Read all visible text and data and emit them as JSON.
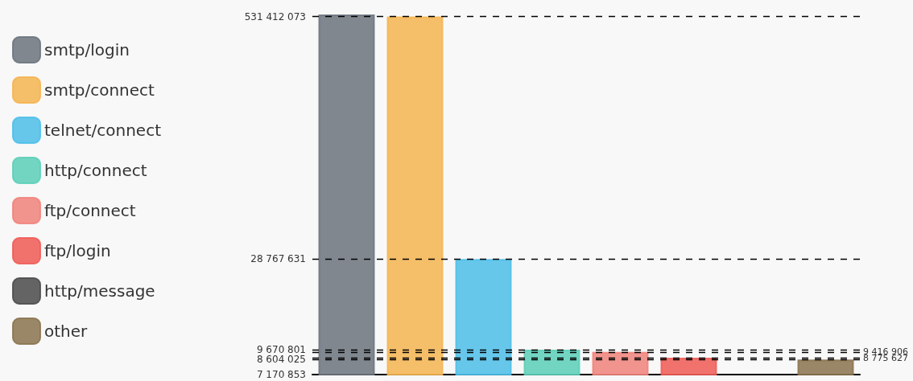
{
  "chart_data": {
    "type": "bar",
    "categories": [
      null,
      null,
      null,
      null,
      null,
      null,
      null,
      null
    ],
    "series": [
      {
        "name": "smtp/login",
        "color": "#6b737c",
        "values": [
          545000000,
          null,
          null,
          null,
          null,
          null,
          null,
          null
        ]
      },
      {
        "name": "smtp/connect",
        "color": "#f5b450",
        "values": [
          null,
          531412073,
          null,
          null,
          null,
          null,
          null,
          null
        ]
      },
      {
        "name": "telnet/connect",
        "color": "#4cbee9",
        "values": [
          null,
          null,
          28767631,
          null,
          null,
          null,
          null,
          null
        ]
      },
      {
        "name": "http/connect",
        "color": "#5bcfb8",
        "values": [
          null,
          null,
          null,
          9670801,
          null,
          null,
          null,
          null
        ]
      },
      {
        "name": "ftp/connect",
        "color": "#f0837a",
        "values": [
          null,
          null,
          null,
          null,
          9416906,
          null,
          null,
          null
        ]
      },
      {
        "name": "ftp/login",
        "color": "#f05a55",
        "values": [
          null,
          null,
          null,
          null,
          null,
          8775627,
          null,
          null
        ]
      },
      {
        "name": "http/message",
        "color": "#4a4a4a",
        "values": [
          null,
          null,
          null,
          null,
          null,
          null,
          7170853,
          null
        ]
      },
      {
        "name": "other",
        "color": "#8a734d",
        "values": [
          null,
          null,
          null,
          null,
          null,
          null,
          null,
          8604025
        ]
      }
    ],
    "log": "y",
    "ylim": [
      7170853,
      545000000
    ],
    "yticks": [
      {
        "value": 7170853,
        "label": "7 170 853"
      },
      {
        "value": 8604025,
        "label": "8 604 025"
      },
      {
        "value": 8775627,
        "label": null
      },
      {
        "value": 9416906,
        "label": null
      },
      {
        "value": 9670801,
        "label": "9 670 801"
      },
      {
        "value": 28767631,
        "label": "28 767 631"
      },
      {
        "value": 531412073,
        "label": "531 412 073"
      }
    ],
    "ref_lines": [
      {
        "axis": "y",
        "value": 531412073,
        "color": "#000000",
        "line_style": "dashed"
      },
      {
        "axis": "y",
        "value": 28767631,
        "color": "#000000",
        "line_style": "dashed"
      },
      {
        "axis": "y",
        "value": 9670801,
        "color": "#000000",
        "line_style": "dashed"
      },
      {
        "axis": "y",
        "value": 9416906,
        "label": "9 416 906",
        "color": "#000000",
        "line_style": "dashed"
      },
      {
        "axis": "y",
        "value": 8775627,
        "label": "8 775 627",
        "color": "#000000",
        "line_style": "dashed"
      },
      {
        "axis": "y",
        "value": 8604025,
        "color": "#000000",
        "line_style": "dashed"
      }
    ],
    "grid": false,
    "legend": "left"
  }
}
